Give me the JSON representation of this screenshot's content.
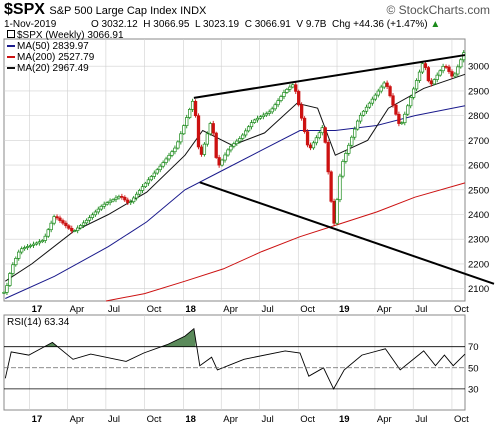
{
  "header": {
    "symbol": "$SPX",
    "name": "S&P 500 Large Cap Index",
    "exchange": "INDX",
    "brand": "© StockCharts.com",
    "date": "1-Nov-2019",
    "open": "O 3032.12",
    "high": "H 3066.95",
    "low": "L 3023.19",
    "close": "C 3066.91",
    "volume": "V 9.7B",
    "change": "Chg +44.36 (+1.47%)"
  },
  "legend": {
    "price": "$SPX (Weekly) 3066.91",
    "ma50": "MA(50) 2839.97",
    "ma200": "MA(200) 2527.79",
    "ma20": "MA(20) 2967.49"
  },
  "colors": {
    "up": "#1a8a1a",
    "down": "#cc1111",
    "ma50": "#1a1a8c",
    "ma200": "#cc1111",
    "ma20": "#111111",
    "grid": "#d0d0d0",
    "rsi_fill": "#5a8a5a"
  },
  "rsi": {
    "label": "RSI(14) 63.34",
    "levels": [
      "70",
      "50",
      "30"
    ]
  },
  "chart_data": {
    "type": "candlestick",
    "interval": "weekly",
    "x_range": [
      "2016-11-01",
      "2019-11-01"
    ],
    "y_range": [
      2050,
      3110
    ],
    "x_labels": [
      "17",
      "Apr",
      "Jul",
      "Oct",
      "18",
      "Apr",
      "Jul",
      "Oct",
      "19",
      "Apr",
      "Jul",
      "Oct"
    ],
    "x_label_dates": [
      "2017-01-01",
      "2017-04-01",
      "2017-07-01",
      "2017-10-01",
      "2018-01-01",
      "2018-04-01",
      "2018-07-01",
      "2018-10-01",
      "2019-01-01",
      "2019-04-01",
      "2019-07-01",
      "2019-10-01"
    ],
    "y_ticks": [
      2100,
      2200,
      2300,
      2400,
      2500,
      2600,
      2700,
      2800,
      2900,
      3000
    ],
    "close_points": [
      [
        "2016-11-04",
        2085
      ],
      [
        "2016-11-18",
        2182
      ],
      [
        "2016-12-09",
        2259
      ],
      [
        "2017-01-06",
        2277
      ],
      [
        "2017-02-03",
        2297
      ],
      [
        "2017-03-01",
        2395
      ],
      [
        "2017-04-14",
        2329
      ],
      [
        "2017-05-19",
        2381
      ],
      [
        "2017-06-23",
        2438
      ],
      [
        "2017-08-04",
        2476
      ],
      [
        "2017-08-25",
        2443
      ],
      [
        "2017-09-29",
        2519
      ],
      [
        "2017-11-03",
        2587
      ],
      [
        "2017-12-15",
        2675
      ],
      [
        "2018-01-26",
        2872
      ],
      [
        "2018-02-09",
        2619
      ],
      [
        "2018-03-09",
        2786
      ],
      [
        "2018-03-23",
        2588
      ],
      [
        "2018-04-20",
        2670
      ],
      [
        "2018-05-18",
        2712
      ],
      [
        "2018-06-15",
        2779
      ],
      [
        "2018-07-27",
        2818
      ],
      [
        "2018-08-31",
        2901
      ],
      [
        "2018-09-21",
        2929
      ],
      [
        "2018-10-26",
        2658
      ],
      [
        "2018-11-30",
        2760
      ],
      [
        "2018-12-24",
        2351
      ],
      [
        "2019-01-11",
        2596
      ],
      [
        "2019-02-22",
        2792
      ],
      [
        "2019-04-26",
        2939
      ],
      [
        "2019-05-31",
        2752
      ],
      [
        "2019-07-26",
        3025
      ],
      [
        "2019-08-09",
        2918
      ],
      [
        "2019-09-13",
        3007
      ],
      [
        "2019-10-04",
        2952
      ],
      [
        "2019-11-01",
        3067
      ]
    ],
    "ma20_points": [
      [
        "2016-11-04",
        2130
      ],
      [
        "2017-01-06",
        2200
      ],
      [
        "2017-04-14",
        2330
      ],
      [
        "2017-07-07",
        2400
      ],
      [
        "2017-10-06",
        2490
      ],
      [
        "2018-01-05",
        2640
      ],
      [
        "2018-02-16",
        2740
      ],
      [
        "2018-04-27",
        2680
      ],
      [
        "2018-07-13",
        2730
      ],
      [
        "2018-09-28",
        2850
      ],
      [
        "2018-11-16",
        2830
      ],
      [
        "2018-12-28",
        2640
      ],
      [
        "2019-03-15",
        2700
      ],
      [
        "2019-05-03",
        2830
      ],
      [
        "2019-07-26",
        2910
      ],
      [
        "2019-11-01",
        2967
      ]
    ],
    "ma50_points": [
      [
        "2016-11-04",
        2060
      ],
      [
        "2017-03-01",
        2150
      ],
      [
        "2017-07-07",
        2270
      ],
      [
        "2017-10-06",
        2370
      ],
      [
        "2018-01-05",
        2500
      ],
      [
        "2018-04-06",
        2580
      ],
      [
        "2018-07-06",
        2660
      ],
      [
        "2018-10-05",
        2740
      ],
      [
        "2018-12-28",
        2740
      ],
      [
        "2019-04-05",
        2760
      ],
      [
        "2019-07-05",
        2800
      ],
      [
        "2019-11-01",
        2840
      ]
    ],
    "ma200_points": [
      [
        "2017-07-01",
        2050
      ],
      [
        "2017-10-01",
        2080
      ],
      [
        "2018-01-05",
        2130
      ],
      [
        "2018-04-06",
        2180
      ],
      [
        "2018-07-06",
        2250
      ],
      [
        "2018-10-05",
        2310
      ],
      [
        "2019-01-04",
        2360
      ],
      [
        "2019-04-05",
        2410
      ],
      [
        "2019-07-05",
        2470
      ],
      [
        "2019-11-01",
        2528
      ]
    ],
    "trendlines": [
      {
        "from": [
          "2018-01-26",
          2872
        ],
        "to": [
          "2019-11-01",
          3045
        ]
      },
      {
        "from": [
          "2018-02-09",
          2530
        ],
        "to": [
          "2019-11-01",
          2160
        ]
      }
    ],
    "rsi_range": [
      10,
      100
    ],
    "rsi_points": [
      [
        "2016-11-04",
        40
      ],
      [
        "2016-11-18",
        65
      ],
      [
        "2016-12-30",
        62
      ],
      [
        "2017-02-24",
        74
      ],
      [
        "2017-04-14",
        58
      ],
      [
        "2017-05-26",
        63
      ],
      [
        "2017-08-18",
        56
      ],
      [
        "2017-09-29",
        64
      ],
      [
        "2017-11-24",
        72
      ],
      [
        "2018-01-05",
        80
      ],
      [
        "2018-01-26",
        87
      ],
      [
        "2018-02-09",
        52
      ],
      [
        "2018-03-09",
        60
      ],
      [
        "2018-03-23",
        48
      ],
      [
        "2018-05-25",
        58
      ],
      [
        "2018-08-31",
        66
      ],
      [
        "2018-10-05",
        64
      ],
      [
        "2018-10-26",
        42
      ],
      [
        "2018-11-30",
        50
      ],
      [
        "2018-12-24",
        30
      ],
      [
        "2019-01-18",
        48
      ],
      [
        "2019-03-01",
        62
      ],
      [
        "2019-04-26",
        68
      ],
      [
        "2019-05-31",
        48
      ],
      [
        "2019-07-26",
        66
      ],
      [
        "2019-08-23",
        52
      ],
      [
        "2019-09-13",
        62
      ],
      [
        "2019-10-04",
        52
      ],
      [
        "2019-11-01",
        63
      ]
    ]
  }
}
